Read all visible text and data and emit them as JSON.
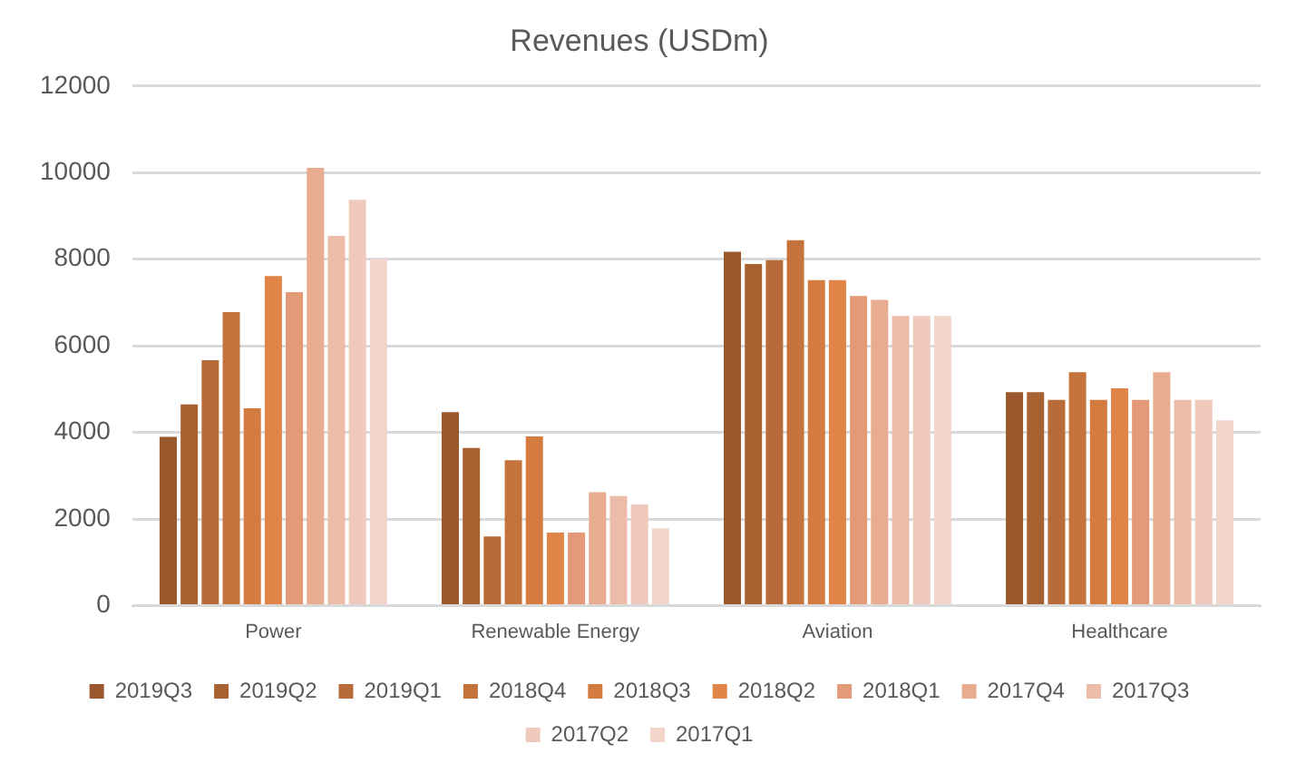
{
  "chart_data": {
    "type": "bar",
    "title": "Revenues (USDm)",
    "categories": [
      "Power",
      "Renewable Energy",
      "Aviation",
      "Healthcare"
    ],
    "series": [
      {
        "name": "2019Q3",
        "color": "#9a582c",
        "values": [
          3900,
          4470,
          8170,
          4930
        ]
      },
      {
        "name": "2019Q2",
        "color": "#a86232",
        "values": [
          4650,
          3640,
          7890,
          4930
        ]
      },
      {
        "name": "2019Q1",
        "color": "#b76b38",
        "values": [
          5670,
          1600,
          7980,
          4750
        ]
      },
      {
        "name": "2018Q4",
        "color": "#c5733c",
        "values": [
          6780,
          3360,
          8440,
          5390
        ]
      },
      {
        "name": "2018Q3",
        "color": "#d47c40",
        "values": [
          4560,
          3910,
          7520,
          4750
        ]
      },
      {
        "name": "2018Q2",
        "color": "#e08447",
        "values": [
          7610,
          1690,
          7520,
          5020
        ]
      },
      {
        "name": "2018Q1",
        "color": "#e49a76",
        "values": [
          7240,
          1690,
          7150,
          4750
        ]
      },
      {
        "name": "2017Q4",
        "color": "#e8ac90",
        "values": [
          10110,
          2620,
          7060,
          5390
        ]
      },
      {
        "name": "2017Q3",
        "color": "#ecbca8",
        "values": [
          8540,
          2530,
          6690,
          4750
        ]
      },
      {
        "name": "2017Q2",
        "color": "#efc9bb",
        "values": [
          9370,
          2340,
          6690,
          4750
        ]
      },
      {
        "name": "2017Q1",
        "color": "#f2d6ca",
        "values": [
          8000,
          1790,
          6690,
          4280
        ]
      }
    ],
    "ylim": [
      0,
      12000
    ],
    "yticks": [
      0,
      2000,
      4000,
      6000,
      8000,
      10000,
      12000
    ],
    "grid": "y",
    "legend": "bottom"
  }
}
